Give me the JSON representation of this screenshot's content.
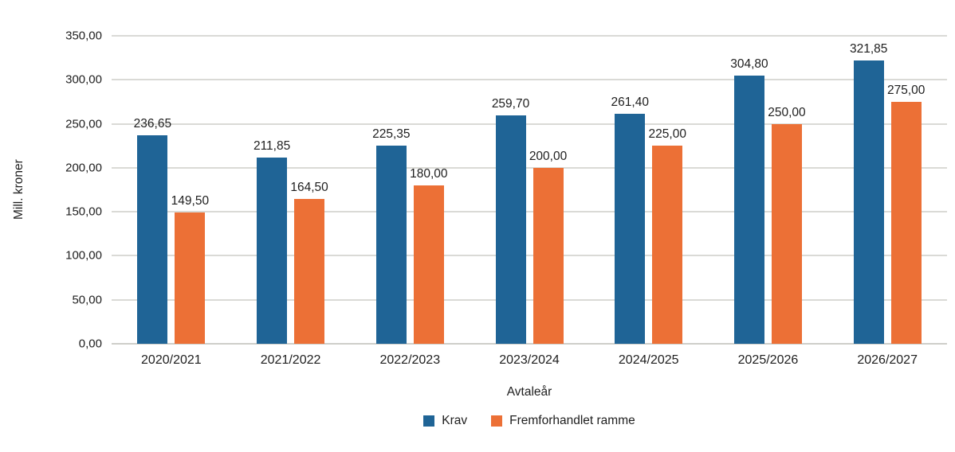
{
  "chart_data": {
    "type": "bar",
    "title": "",
    "xlabel": "Avtaleår",
    "ylabel": "Mill. kroner",
    "categories": [
      "2020/2021",
      "2021/2022",
      "2022/2023",
      "2023/2024",
      "2024/2025",
      "2025/2026",
      "2026/2027"
    ],
    "series": [
      {
        "name": "Krav",
        "color": "#1f6496",
        "values": [
          236.65,
          211.85,
          225.35,
          259.7,
          261.4,
          304.8,
          321.85
        ],
        "labels": [
          "236,65",
          "211,85",
          "225,35",
          "259,70",
          "261,40",
          "304,80",
          "321,85"
        ]
      },
      {
        "name": "Fremforhandlet ramme",
        "color": "#ec7036",
        "values": [
          149.5,
          164.5,
          180.0,
          200.0,
          225.0,
          250.0,
          275.0
        ],
        "labels": [
          "149,50",
          "164,50",
          "180,00",
          "200,00",
          "225,00",
          "250,00",
          "275,00"
        ]
      }
    ],
    "ylim": [
      0,
      350
    ],
    "yticks": [
      0,
      50,
      100,
      150,
      200,
      250,
      300,
      350
    ],
    "ytick_labels": [
      "0,00",
      "50,00",
      "100,00",
      "150,00",
      "200,00",
      "250,00",
      "300,00",
      "350,00"
    ],
    "grid": true,
    "legend_position": "bottom",
    "decimal_separator": ","
  }
}
